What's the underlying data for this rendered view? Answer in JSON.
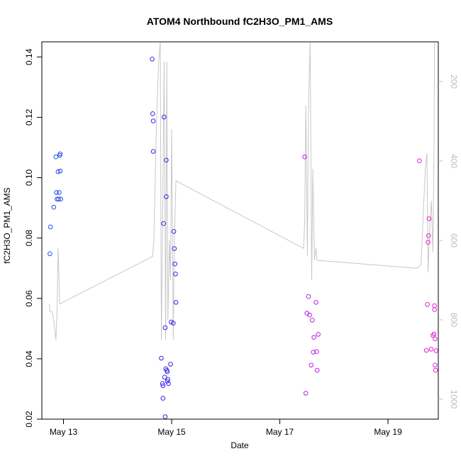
{
  "chart_data": {
    "type": "scatter",
    "title": "ATOM4 Northbound fC2H3O_PM1_AMS",
    "xlabel": "Date",
    "ylabel": "fC2H3O_PM1_AMS",
    "x_unit": "days since May 12 00:00",
    "xlim": [
      0.6,
      7.93
    ],
    "ylim": [
      0.02,
      0.145
    ],
    "x_ticks": [
      {
        "value": 1,
        "label": "May 13"
      },
      {
        "value": 3,
        "label": "May 15"
      },
      {
        "value": 5,
        "label": "May 17"
      },
      {
        "value": 7,
        "label": "May 19"
      }
    ],
    "y_ticks": [
      0.02,
      0.04,
      0.06,
      0.08,
      0.1,
      0.12,
      0.14
    ],
    "y_tick_labels": [
      "0.02",
      "0.04",
      "0.06",
      "0.08",
      "0.10",
      "0.12",
      "0.14"
    ],
    "secondary_axis": {
      "label": "",
      "reversed": true,
      "ylim": [
        1050,
        100
      ],
      "ticks": [
        200,
        400,
        600,
        800,
        1000
      ],
      "tick_labels": [
        "200",
        "400",
        "600",
        "800",
        "1000"
      ],
      "color": "#bdbdbd"
    },
    "series": [
      {
        "name": "fC2H3O_PM1_AMS",
        "kind": "points",
        "color_gradient": [
          "#1f4fe0",
          "#3a1fe8",
          "#b81fe0",
          "#e81fd4"
        ],
        "points": [
          [
            0.75,
            0.0748
          ],
          [
            0.76,
            0.0837
          ],
          [
            0.82,
            0.0902
          ],
          [
            0.86,
            0.1069
          ],
          [
            0.87,
            0.0951
          ],
          [
            0.88,
            0.0929
          ],
          [
            0.9,
            0.102
          ],
          [
            0.91,
            0.0929
          ],
          [
            0.92,
            0.0951
          ],
          [
            0.93,
            0.1074
          ],
          [
            0.94,
            0.1022
          ],
          [
            0.94,
            0.1079
          ],
          [
            0.95,
            0.0929
          ],
          [
            2.64,
            0.1393
          ],
          [
            2.65,
            0.1212
          ],
          [
            2.66,
            0.1188
          ],
          [
            2.66,
            0.1087
          ],
          [
            2.81,
            0.0402
          ],
          [
            2.83,
            0.0318
          ],
          [
            2.84,
            0.0311
          ],
          [
            2.84,
            0.0269
          ],
          [
            2.85,
            0.0848
          ],
          [
            2.86,
            0.1201
          ],
          [
            2.87,
            0.0339
          ],
          [
            2.88,
            0.0208
          ],
          [
            2.88,
            0.0503
          ],
          [
            2.89,
            0.0367
          ],
          [
            2.9,
            0.1058
          ],
          [
            2.9,
            0.0937
          ],
          [
            2.91,
            0.0362
          ],
          [
            2.92,
            0.0326
          ],
          [
            2.92,
            0.0357
          ],
          [
            2.93,
            0.0332
          ],
          [
            2.94,
            0.0318
          ],
          [
            2.98,
            0.0382
          ],
          [
            2.99,
            0.0522
          ],
          [
            3.03,
            0.0518
          ],
          [
            3.04,
            0.0822
          ],
          [
            3.05,
            0.0765
          ],
          [
            3.06,
            0.0714
          ],
          [
            3.07,
            0.0681
          ],
          [
            3.08,
            0.0587
          ],
          [
            5.46,
            0.1069
          ],
          [
            5.48,
            0.0286
          ],
          [
            5.5,
            0.0551
          ],
          [
            5.53,
            0.0606
          ],
          [
            5.55,
            0.0545
          ],
          [
            5.58,
            0.0379
          ],
          [
            5.6,
            0.0528
          ],
          [
            5.62,
            0.0422
          ],
          [
            5.63,
            0.0471
          ],
          [
            5.67,
            0.0587
          ],
          [
            5.68,
            0.0424
          ],
          [
            5.69,
            0.0362
          ],
          [
            5.71,
            0.0481
          ],
          [
            7.58,
            0.1056
          ],
          [
            7.71,
            0.0428
          ],
          [
            7.73,
            0.058
          ],
          [
            7.74,
            0.0786
          ],
          [
            7.75,
            0.0808
          ],
          [
            7.76,
            0.0864
          ],
          [
            7.8,
            0.0432
          ],
          [
            7.83,
            0.0477
          ],
          [
            7.85,
            0.0482
          ],
          [
            7.86,
            0.0576
          ],
          [
            7.86,
            0.0563
          ],
          [
            7.87,
            0.0466
          ],
          [
            7.87,
            0.0379
          ],
          [
            7.88,
            0.0362
          ],
          [
            7.89,
            0.0427
          ]
        ]
      },
      {
        "name": "secondary trace",
        "kind": "line",
        "axis": "secondary",
        "color": "#c8c8c8",
        "points": [
          [
            0.74,
            760
          ],
          [
            0.75,
            780
          ],
          [
            0.79,
            780
          ],
          [
            0.82,
            800
          ],
          [
            0.86,
            850
          ],
          [
            0.88,
            780
          ],
          [
            0.9,
            620
          ],
          [
            0.93,
            760
          ],
          [
            2.65,
            640
          ],
          [
            2.67,
            600
          ],
          [
            2.72,
            300
          ],
          [
            2.76,
            150
          ],
          [
            2.79,
            100
          ],
          [
            2.81,
            850
          ],
          [
            2.84,
            450
          ],
          [
            2.86,
            150
          ],
          [
            2.89,
            850
          ],
          [
            2.91,
            150
          ],
          [
            2.93,
            800
          ],
          [
            2.96,
            600
          ],
          [
            2.98,
            700
          ],
          [
            3.0,
            320
          ],
          [
            3.03,
            850
          ],
          [
            3.05,
            600
          ],
          [
            3.08,
            450
          ],
          [
            5.44,
            620
          ],
          [
            5.46,
            550
          ],
          [
            5.48,
            260
          ],
          [
            5.51,
            640
          ],
          [
            5.53,
            260
          ],
          [
            5.56,
            100
          ],
          [
            5.59,
            700
          ],
          [
            5.61,
            420
          ],
          [
            5.64,
            650
          ],
          [
            5.67,
            620
          ],
          [
            5.69,
            650
          ],
          [
            7.54,
            670
          ],
          [
            7.61,
            660
          ],
          [
            7.65,
            540
          ],
          [
            7.69,
            420
          ],
          [
            7.72,
            380
          ],
          [
            7.74,
            680
          ],
          [
            7.77,
            570
          ],
          [
            7.8,
            500
          ],
          [
            7.83,
            630
          ],
          [
            7.85,
            380
          ],
          [
            7.86,
            100
          ],
          [
            7.87,
            100
          ]
        ]
      }
    ]
  }
}
